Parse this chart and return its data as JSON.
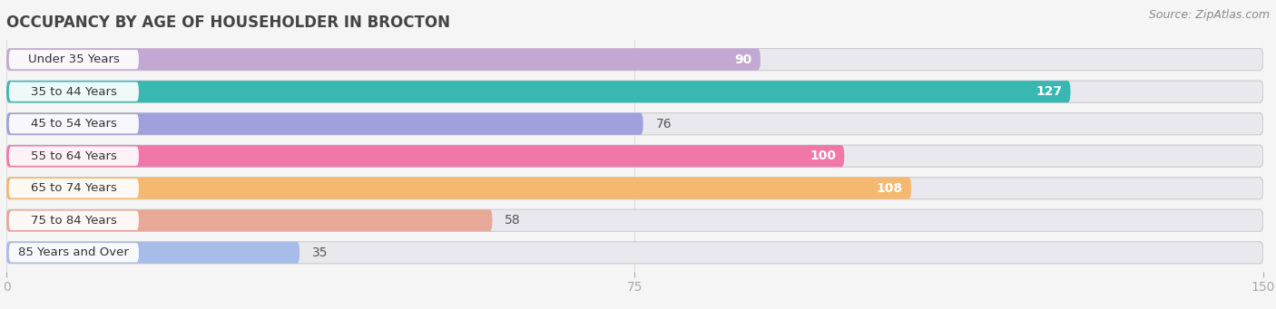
{
  "title": "OCCUPANCY BY AGE OF HOUSEHOLDER IN BROCTON",
  "source": "Source: ZipAtlas.com",
  "categories": [
    "Under 35 Years",
    "35 to 44 Years",
    "45 to 54 Years",
    "55 to 64 Years",
    "65 to 74 Years",
    "75 to 84 Years",
    "85 Years and Over"
  ],
  "values": [
    90,
    127,
    76,
    100,
    108,
    58,
    35
  ],
  "bar_colors": [
    "#c4a8d4",
    "#38b8b0",
    "#a0a0dc",
    "#f078a8",
    "#f5b870",
    "#e8a898",
    "#a8bce8"
  ],
  "label_colors": [
    "white",
    "white",
    "black",
    "white",
    "white",
    "black",
    "black"
  ],
  "xlim": [
    0,
    150
  ],
  "xticks": [
    0,
    75,
    150
  ],
  "background_color": "#f5f5f5",
  "bar_background_color": "#e8e8ee",
  "title_fontsize": 12,
  "source_fontsize": 9,
  "bar_height": 0.68,
  "bar_label_fontsize": 9.5,
  "value_label_fontsize": 10
}
